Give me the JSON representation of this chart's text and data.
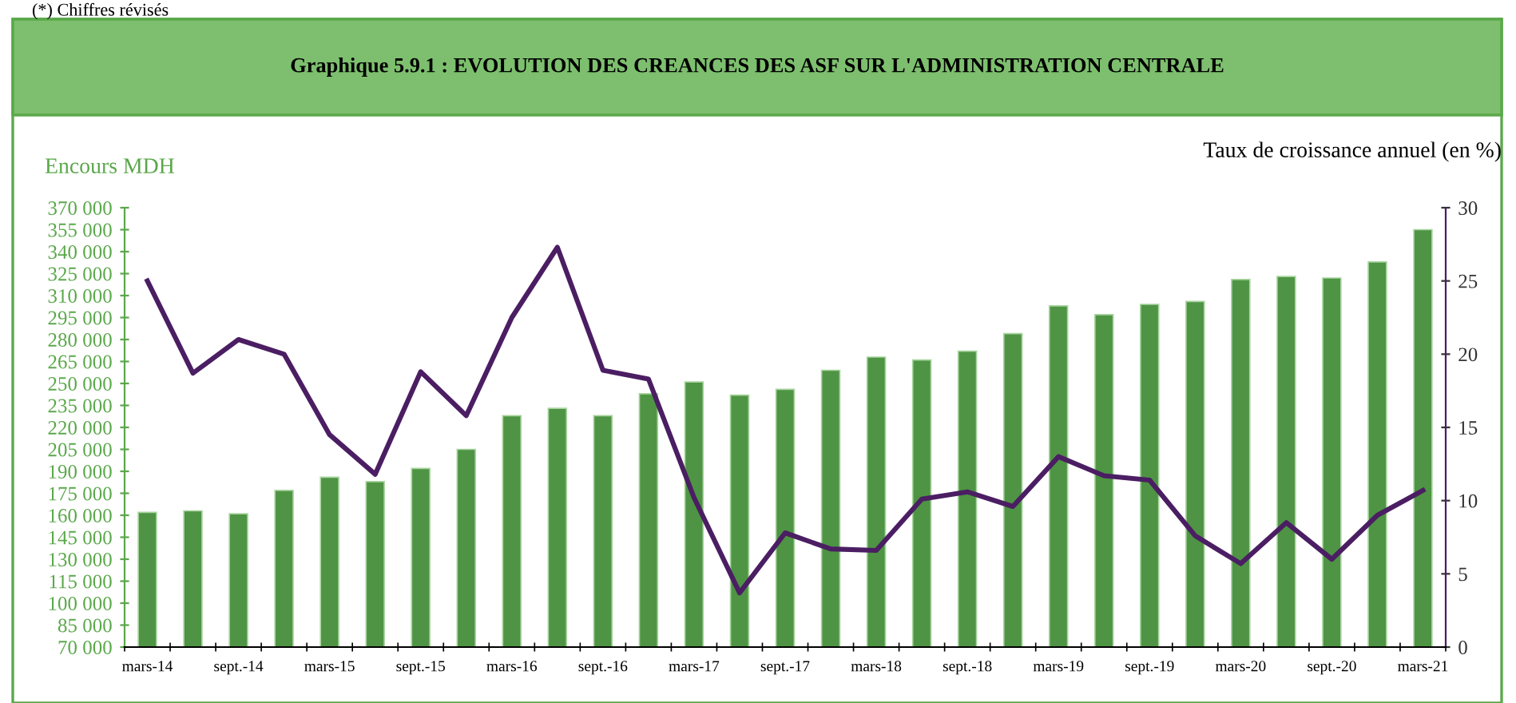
{
  "chart_data": {
    "type": "bar",
    "title": "Graphique 5.9.1 : EVOLUTION DES CREANCES DES ASF SUR L'ADMINISTRATION CENTRALE",
    "ylabel": "Encours MDH",
    "y2label": "Taux de croissance annuel (en %)",
    "annotations": [
      "(*) Chiffres révisés"
    ],
    "categories": [
      "mars-14",
      null,
      "sept.-14",
      null,
      "mars-15",
      null,
      "sept.-15",
      null,
      "mars-16",
      null,
      "sept.-16",
      null,
      "mars-17",
      null,
      "sept.-17",
      null,
      "mars-18",
      null,
      "sept.-18",
      null,
      "mars-19",
      null,
      "sept.-19",
      null,
      "mars-20",
      null,
      "sept.-20",
      null,
      "mars-21"
    ],
    "series": [
      {
        "color": "#4e9444",
        "values": [
          162000,
          163000,
          161000,
          177000,
          186000,
          183000,
          192000,
          205000,
          228000,
          233000,
          228000,
          243000,
          251000,
          242000,
          246000,
          259000,
          268000,
          266000,
          272000,
          284000,
          303000,
          297000,
          304000,
          306000,
          321000,
          323000,
          322000,
          333000,
          355000
        ]
      },
      {
        "type": "line",
        "axis": "y2",
        "color": "#4b1e63",
        "values": [
          25.0,
          18.7,
          21.0,
          20.0,
          14.5,
          11.8,
          18.8,
          15.8,
          22.5,
          27.3,
          18.9,
          18.3,
          10.2,
          3.7,
          7.8,
          6.7,
          6.6,
          10.1,
          10.6,
          9.6,
          13.0,
          11.7,
          11.4,
          7.6,
          5.7,
          8.5,
          6.0,
          9.0,
          10.7
        ]
      }
    ],
    "ylim": [
      70000,
      370000
    ],
    "yticks": [
      {
        "value": 70000,
        "label": "70 000"
      },
      {
        "value": 85000,
        "label": "85 000"
      },
      {
        "value": 100000,
        "label": "100 000"
      },
      {
        "value": 115000,
        "label": "115 000"
      },
      {
        "value": 130000,
        "label": "130 000"
      },
      {
        "value": 145000,
        "label": "145 000"
      },
      {
        "value": 160000,
        "label": "160 000"
      },
      {
        "value": 175000,
        "label": "175 000"
      },
      {
        "value": 190000,
        "label": "190 000"
      },
      {
        "value": 205000,
        "label": "205 000"
      },
      {
        "value": 220000,
        "label": "220 000"
      },
      {
        "value": 235000,
        "label": "235 000"
      },
      {
        "value": 250000,
        "label": "250 000"
      },
      {
        "value": 265000,
        "label": "265 000"
      },
      {
        "value": 280000,
        "label": "280 000"
      },
      {
        "value": 295000,
        "label": "295 000"
      },
      {
        "value": 310000,
        "label": "310 000"
      },
      {
        "value": 325000,
        "label": "325 000"
      },
      {
        "value": 340000,
        "label": "340 000"
      },
      {
        "value": 355000,
        "label": "355 000"
      },
      {
        "value": 370000,
        "label": "370 000"
      }
    ],
    "y2lim": [
      0,
      30
    ],
    "y2ticks": [
      0,
      5,
      10,
      15,
      20,
      25,
      30
    ],
    "grid": false,
    "legend": false
  }
}
